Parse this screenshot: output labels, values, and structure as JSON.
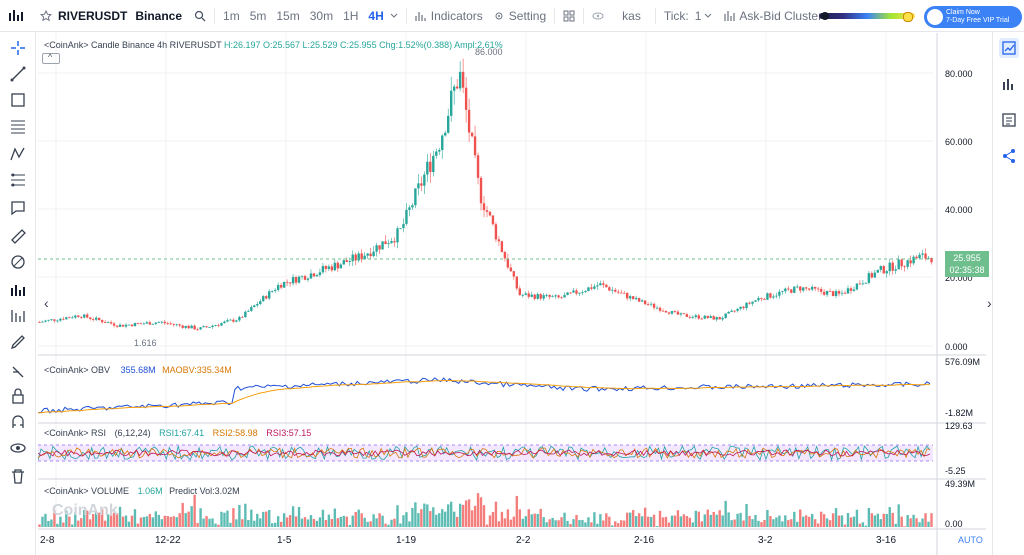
{
  "header": {
    "symbol": "RIVERUSDT",
    "exchange": "Binance",
    "timeframes": [
      "1m",
      "5m",
      "15m",
      "30m",
      "1H",
      "4H"
    ],
    "active_timeframe": "4H",
    "indicators_label": "Indicators",
    "setting_label": "Setting",
    "source_label": "kas",
    "tick_label": "Tick:",
    "tick_value": "1",
    "cluster_label": "Ask-Bid Cluster",
    "vip_line1": "Claim Now",
    "vip_line2": "7-Day Free VIP Trial"
  },
  "main_panel": {
    "title": "<CoinAnk> Candle  Binance 4h RIVERUSDT",
    "ohlc": "H:26.197  O:25.567  L:25.529  C:25.955  Chg:1.52%(0.388)  Ampl:2.61%",
    "high_marker": "86.000",
    "low_marker": "1.616",
    "y_ticks": [
      "80.000",
      "60.000",
      "40.000",
      "20.000",
      "0.000"
    ],
    "last_price": "25.955",
    "countdown": "02:35:38"
  },
  "obv_panel": {
    "title": "<CoinAnk> OBV",
    "obv": "355.68M",
    "maobv": "MAOBV:335.34M",
    "y_max": "576.09M",
    "y_min": "-1.82M"
  },
  "rsi_panel": {
    "title": "<CoinAnk> RSI",
    "params": "(6,12,24)",
    "rsi1": "RSI1:67.41",
    "rsi2": "RSI2:58.98",
    "rsi3": "RSI3:57.15",
    "y_max": "129.63",
    "y_min": "-5.25"
  },
  "volume_panel": {
    "title": "<CoinAnk> VOLUME",
    "volume": "1.06M",
    "predict": "Predict Vol:3.02M",
    "y_max": "49.39M",
    "y_min": "0.00",
    "watermark": "CoinAnk"
  },
  "x_axis": [
    "2-8",
    "12-22",
    "1-5",
    "1-19",
    "2-2",
    "2-16",
    "3-2",
    "3-16"
  ],
  "auto_label": "AUTO",
  "colors": {
    "up": "#26a69a",
    "down": "#ef5350",
    "accent": "#2563eb",
    "obv": "#1d4ed8",
    "maobv": "#f59e0b"
  },
  "chart_data": {
    "type": "candlestick",
    "ylim": [
      0,
      86
    ],
    "close_path_points": [
      [
        0,
        7
      ],
      [
        40,
        9
      ],
      [
        80,
        6
      ],
      [
        120,
        7
      ],
      [
        160,
        5
      ],
      [
        200,
        8
      ],
      [
        240,
        18
      ],
      [
        280,
        22
      ],
      [
        320,
        26
      ],
      [
        360,
        33
      ],
      [
        400,
        60
      ],
      [
        420,
        80
      ],
      [
        440,
        45
      ],
      [
        460,
        30
      ],
      [
        480,
        15
      ],
      [
        520,
        14
      ],
      [
        560,
        18
      ],
      [
        600,
        13
      ],
      [
        640,
        9
      ],
      [
        680,
        8
      ],
      [
        720,
        14
      ],
      [
        760,
        17
      ],
      [
        800,
        15
      ],
      [
        840,
        22
      ],
      [
        880,
        26
      ]
    ]
  }
}
